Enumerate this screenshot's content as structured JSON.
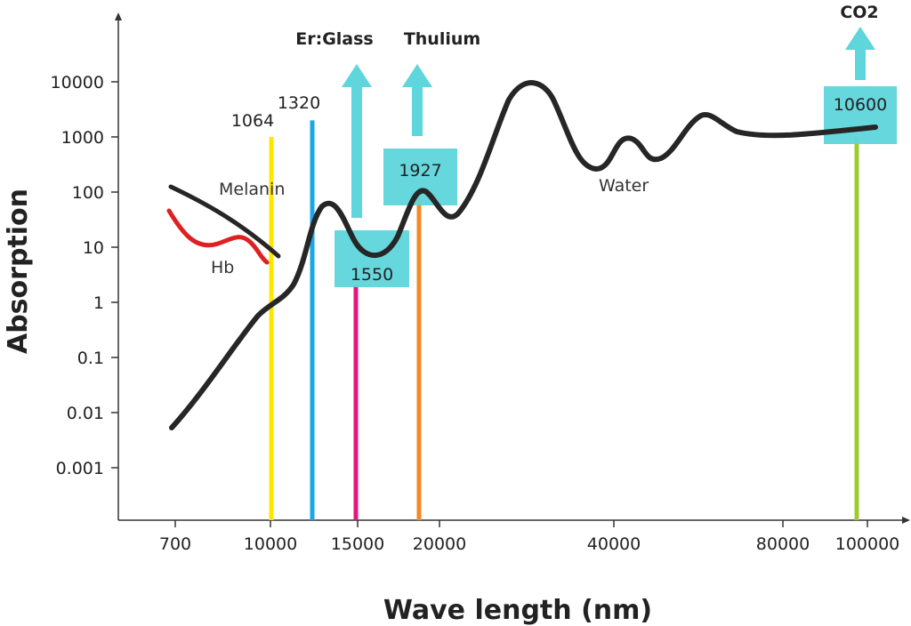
{
  "chart_data": {
    "type": "line",
    "title": "",
    "xlabel": "Wave length (nm)",
    "ylabel": "Absorption",
    "x_scale": "categorical-ticks",
    "y_scale": "log",
    "x_ticks": [
      "700",
      "10000",
      "15000",
      "20000",
      "40000",
      "80000",
      "100000"
    ],
    "y_ticks": [
      "10000",
      "1000",
      "100",
      "10",
      "1",
      "0.1",
      "0.01",
      "0.001"
    ],
    "grid": false,
    "series": [
      {
        "name": "Water",
        "color": "#262626",
        "x": [
          "700",
          "10000",
          "15000",
          "20000",
          "40000",
          "80000",
          "100000"
        ],
        "y": [
          0.005,
          0.5,
          6,
          35,
          300,
          1150,
          1400
        ]
      },
      {
        "name": "Melanin",
        "color": "#262626",
        "x": [
          "700",
          "10000"
        ],
        "y": [
          120,
          10
        ]
      },
      {
        "name": "Hb",
        "color": "#e02020",
        "x": [
          "700",
          "10000"
        ],
        "y": [
          45,
          6
        ]
      }
    ],
    "lasers": [
      {
        "wavelength_label": "1064",
        "color": "#ffe600",
        "absorption_top": 1000
      },
      {
        "wavelength_label": "1320",
        "color": "#1aa7e8",
        "absorption_top": 2000
      },
      {
        "wavelength_label": "1550",
        "name": "Er:Glass",
        "color": "#e5167e",
        "absorption_top": 2,
        "highlight": true
      },
      {
        "wavelength_label": "1927",
        "name": "Thulium",
        "color": "#f08a24",
        "absorption_top": 80,
        "highlight": true
      },
      {
        "wavelength_label": "10600",
        "name": "CO2",
        "color": "#9ccc2e",
        "absorption_top": 1000,
        "highlight": true
      }
    ],
    "highlight_color": "#5fd5dc"
  }
}
